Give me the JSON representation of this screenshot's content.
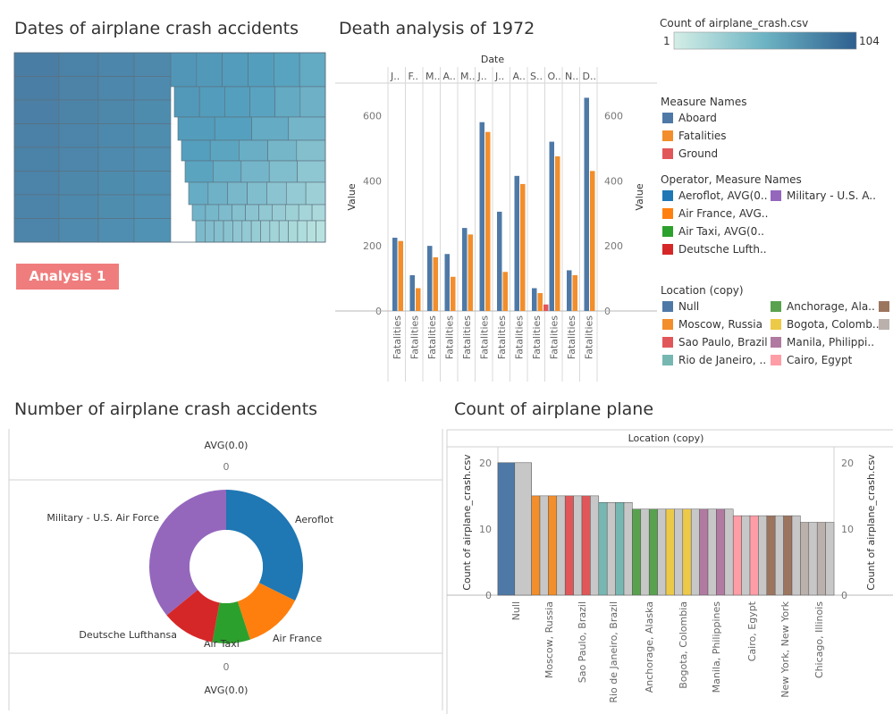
{
  "titles": {
    "treemap": "Dates of airplane crash accidents",
    "death": "Death analysis of 1972",
    "donut": "Number of airplane crash accidents",
    "count": "Count of airplane plane"
  },
  "button": {
    "label": "Analysis 1"
  },
  "colors": {
    "aboard": "#4e79a7",
    "fatalities": "#f28e2b",
    "ground": "#e15759",
    "aeroflot": "#1f77b4",
    "air_france": "#ff7f0e",
    "air_taxi": "#2ca02c",
    "deutsche": "#d62728",
    "military": "#9467bd",
    "grey": "#c7c7c7",
    "axis": "#b8b8b8"
  },
  "legends": {
    "color_scale": {
      "title": "Count of airplane_crash.csv",
      "min": "1",
      "max": "104"
    },
    "measure_names": {
      "title": "Measure Names",
      "items": [
        "Aboard",
        "Fatalities",
        "Ground"
      ]
    },
    "operator": {
      "title": "Operator, Measure Names",
      "items": [
        "Aeroflot, AVG(0..",
        "Military - U.S. A..",
        "Air France, AVG..",
        "Air Taxi, AVG(0..",
        "Deutsche Lufth.."
      ]
    },
    "location": {
      "title": "Location (copy)",
      "items": [
        "Null",
        "Anchorage, Ala..",
        "Moscow, Russia",
        "Bogota, Colomb..",
        "Sao Paulo, Brazil",
        "Manila, Philippi..",
        "Rio de Janeiro, ..",
        "Cairo, Egypt"
      ]
    }
  },
  "chart_data": [
    {
      "type": "heatmap",
      "title": "Dates of airplane crash accidents",
      "color_range": [
        1,
        104
      ]
    },
    {
      "type": "bar",
      "title": "Death analysis of 1972",
      "header": "Date",
      "months": [
        "J..",
        "F..",
        "M..",
        "A..",
        "M..",
        "J..",
        "J..",
        "A..",
        "S..",
        "O..",
        "N..",
        "D.."
      ],
      "categories": [
        "Fatalities",
        "Fatalities",
        "Fatalities",
        "Fatalities",
        "Fatalities",
        "Fatalities",
        "Fatalities",
        "Fatalities",
        "Fatalities",
        "Fatalities",
        "Fatalities",
        "Fatalities"
      ],
      "ylabel": "Value",
      "ylim": [
        0,
        700
      ],
      "yticks": [
        0,
        200,
        400,
        600
      ],
      "series": [
        {
          "name": "Aboard",
          "values": [
            225,
            110,
            200,
            175,
            255,
            580,
            305,
            415,
            70,
            520,
            125,
            655
          ]
        },
        {
          "name": "Fatalities",
          "values": [
            215,
            70,
            165,
            105,
            235,
            550,
            120,
            390,
            55,
            475,
            110,
            430
          ]
        },
        {
          "name": "Ground",
          "values": [
            0,
            0,
            0,
            0,
            0,
            0,
            0,
            0,
            20,
            0,
            0,
            0
          ]
        }
      ]
    },
    {
      "type": "pie",
      "title": "Number of airplane crash accidents",
      "axis_label": "AVG(0.0)",
      "axis_tick": "0",
      "slices": [
        {
          "label": "Aeroflot",
          "value": 179
        },
        {
          "label": "Air France",
          "value": 70
        },
        {
          "label": "Air Taxi",
          "value": 44
        },
        {
          "label": "Deutsche Lufthansa",
          "value": 62
        },
        {
          "label": "Military - U.S. Air Force",
          "value": 199
        }
      ]
    },
    {
      "type": "bar",
      "title": "Count of airplane plane",
      "header": "Location (copy)",
      "ylabel": "Count of airplane_crash.csv",
      "ylim": [
        0,
        22
      ],
      "yticks": [
        0,
        10,
        20
      ],
      "categories": [
        "Null",
        "Moscow, Russia",
        "Sao Paulo, Brazil",
        "Rio de Janeiro, Brazil",
        "Anchorage, Alaska",
        "Bogota, Colombia",
        "Manila, Philippines",
        "Cairo, Egypt",
        "New York, New York",
        "Chicago, Illinois"
      ],
      "values": [
        20,
        15,
        15,
        14,
        13,
        13,
        13,
        12,
        12,
        11
      ]
    }
  ]
}
